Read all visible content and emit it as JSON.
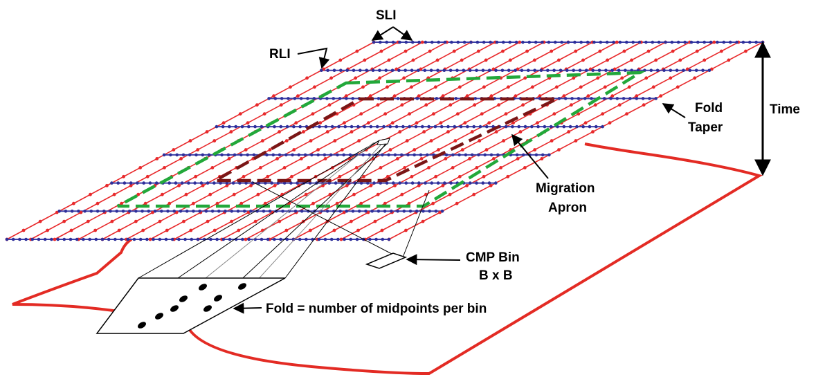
{
  "labels": {
    "sli": "SLI",
    "rli": "RLI",
    "time": "Time",
    "fold_taper_1": "Fold",
    "fold_taper_2": "Taper",
    "migration_apron_1": "Migration",
    "migration_apron_2": "Apron",
    "cmp_bin_1": "CMP Bin",
    "cmp_bin_2": "B x B",
    "fold_definition": "Fold = number of midpoints per bin"
  },
  "colors": {
    "receiver_line": "#e8292b",
    "receiver_station": "#e8292b",
    "source_line": "#3b3fa8",
    "source_station": "#2e2f9a",
    "migration_apron": "#22a83a",
    "fold_taper": "#7a1616",
    "subsurface_boundary": "#e32b24",
    "annotation": "#000000"
  },
  "icons": {
    "station_marker": "dot",
    "midpoint_marker": "ellipse",
    "arrow": "arrowhead"
  }
}
